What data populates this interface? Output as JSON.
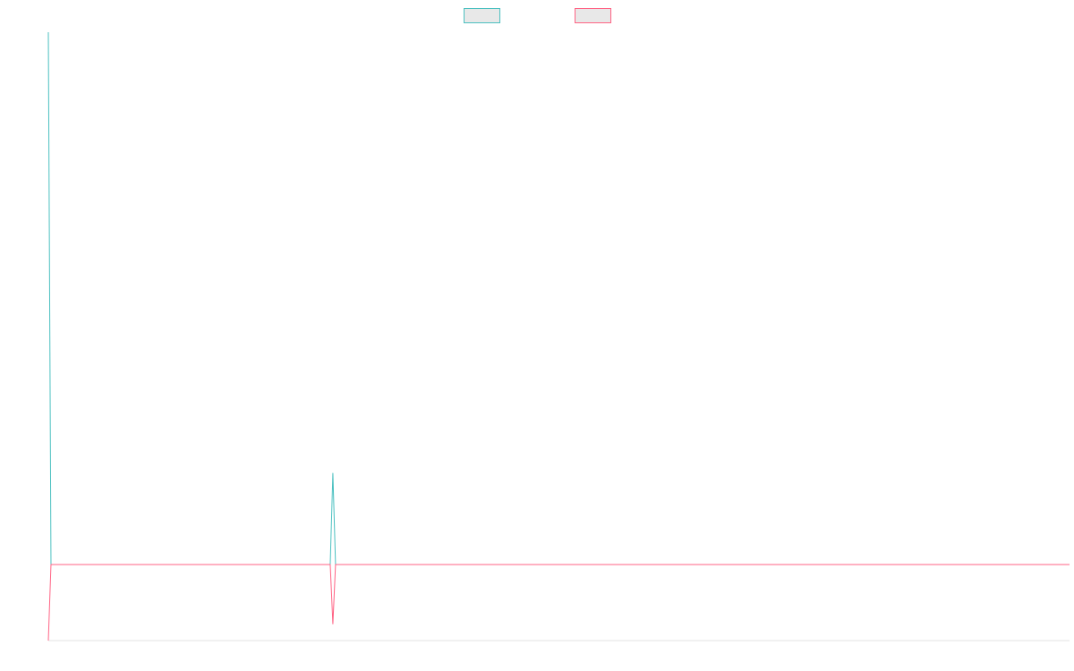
{
  "chart_data": {
    "type": "line",
    "title": "",
    "xlabel": "",
    "ylabel": "",
    "x": [
      0,
      1,
      2,
      3,
      4,
      5,
      6,
      7,
      8,
      9,
      10,
      11,
      12,
      13,
      14,
      15,
      16,
      17,
      18,
      19,
      20,
      21,
      22,
      23,
      24,
      25,
      26,
      27,
      28,
      29,
      30,
      31,
      32,
      33,
      34,
      35,
      36,
      37,
      38,
      39,
      40,
      41,
      42,
      43,
      44,
      45,
      46,
      47,
      48,
      49,
      50,
      51,
      52,
      53,
      54,
      55,
      56,
      57,
      58,
      59,
      60,
      61,
      62,
      63,
      64,
      65,
      66,
      67,
      68,
      69,
      70,
      71,
      72,
      73,
      74,
      75,
      76,
      77,
      78,
      79,
      80,
      81,
      82,
      83,
      84,
      85,
      86,
      87,
      88,
      89,
      90,
      91,
      92,
      93,
      94,
      95,
      96,
      97,
      98,
      99,
      100,
      101,
      102,
      103,
      104,
      105,
      106,
      107,
      108,
      109,
      110,
      111,
      112,
      113,
      114,
      115,
      116,
      117,
      118,
      119,
      120,
      121,
      122,
      123,
      124,
      125,
      126,
      127,
      128,
      129,
      130,
      131,
      132,
      133,
      134,
      135,
      136,
      137,
      138,
      139,
      140,
      141,
      142,
      143,
      144,
      145,
      146,
      147,
      148,
      149,
      150,
      151,
      152,
      153,
      154,
      155,
      156,
      157,
      158,
      159,
      160,
      161,
      162,
      163,
      164,
      165,
      166,
      167,
      168,
      169,
      170,
      171,
      172,
      173,
      174,
      175,
      176,
      177,
      178,
      179,
      180,
      181,
      182,
      183,
      184,
      185,
      186,
      187,
      188,
      189,
      190,
      191,
      192,
      193,
      194,
      195,
      196,
      197,
      198,
      199,
      200,
      201,
      202,
      203,
      204,
      205,
      206,
      207,
      208,
      209,
      210,
      211,
      212,
      213,
      214,
      215,
      216,
      217,
      218,
      219,
      220,
      221,
      222,
      223,
      224,
      225,
      226,
      227,
      228,
      229,
      230,
      231,
      232,
      233,
      234,
      235,
      236,
      237,
      238,
      239,
      240,
      241,
      242,
      243,
      244,
      245,
      246,
      247,
      248,
      249,
      250,
      251,
      252,
      253,
      254,
      255,
      256,
      257,
      258,
      259,
      260,
      261,
      262,
      263,
      264,
      265,
      266,
      267,
      268,
      269,
      270,
      271,
      272,
      273,
      274,
      275,
      276,
      277,
      278,
      279,
      280,
      281,
      282,
      283,
      284,
      285,
      286,
      287,
      288,
      289,
      290,
      291,
      292,
      293,
      294,
      295,
      296,
      297,
      298,
      299,
      300,
      301,
      302,
      303,
      304,
      305,
      306,
      307,
      308,
      309,
      310,
      311,
      312,
      313,
      314,
      315,
      316,
      317,
      318,
      319,
      320,
      321,
      322,
      323,
      324,
      325,
      326,
      327,
      328,
      329,
      330,
      331,
      332,
      333,
      334,
      335,
      336,
      337,
      338,
      339,
      340,
      341,
      342,
      343,
      344,
      345,
      346,
      347,
      348,
      349,
      350,
      351,
      352,
      353,
      354,
      355,
      356,
      357,
      358,
      359,
      360,
      361,
      362,
      363,
      364,
      365,
      366,
      367,
      368,
      369,
      370,
      371,
      372,
      373,
      374,
      375,
      376,
      377,
      378,
      379,
      380,
      381,
      382,
      383,
      384
    ],
    "ylim": [
      -1,
      7
    ],
    "grid": false,
    "legend": "top-center",
    "series": [
      {
        "name": "",
        "color": "#4bc0c0",
        "fill": "#e8e8e8",
        "points": [
          [
            0,
            7
          ],
          [
            1,
            0
          ],
          [
            106,
            0
          ],
          [
            107,
            1.2
          ],
          [
            108,
            0
          ],
          [
            384,
            0
          ]
        ]
      },
      {
        "name": "",
        "color": "#ff6384",
        "fill": "#e8e8e8",
        "points": [
          [
            0,
            -1
          ],
          [
            1,
            0
          ],
          [
            106,
            0
          ],
          [
            107,
            -0.78
          ],
          [
            108,
            0
          ],
          [
            384,
            0
          ]
        ]
      }
    ]
  }
}
